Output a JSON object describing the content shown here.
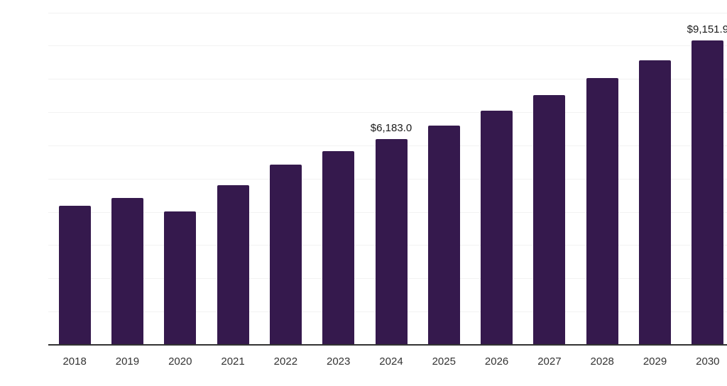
{
  "chart_data": {
    "type": "bar",
    "title": "",
    "xlabel": "",
    "ylabel": "",
    "categories": [
      "2018",
      "2019",
      "2020",
      "2021",
      "2022",
      "2023",
      "2024",
      "2025",
      "2026",
      "2027",
      "2028",
      "2029",
      "2030"
    ],
    "values": [
      4185,
      4425,
      4010,
      4805,
      5415,
      5820,
      6183.0,
      6600,
      7040,
      7505,
      8025,
      8560,
      9151.9
    ],
    "data_labels": [
      "",
      "",
      "",
      "",
      "",
      "",
      "$6,183.0",
      "",
      "",
      "",
      "",
      "",
      "$9,151.9"
    ],
    "ylim": [
      0,
      10000
    ],
    "y_grid_interval": 1000,
    "grid": "horizontal",
    "legend": "none",
    "y_axis_labels_visible": false
  },
  "colors": {
    "background": "#FFFFFF",
    "bar": "#35194D",
    "gridline": "#F2F2F2",
    "axis_line": "#333333",
    "tick_text": "#333333",
    "data_label_text": "#1A1A1A"
  }
}
